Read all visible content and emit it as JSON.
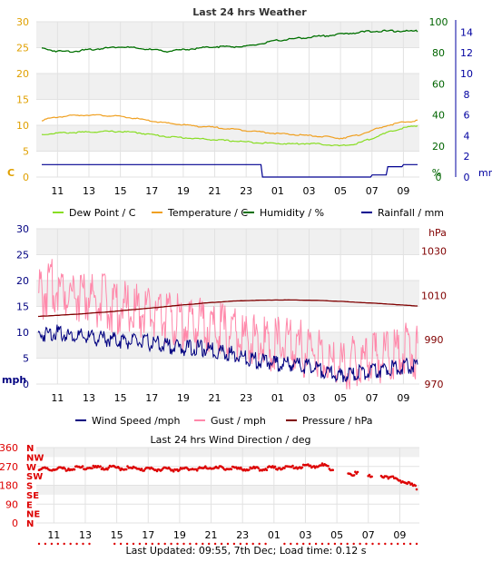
{
  "charts": {
    "weather": {
      "title": "Last 24 hrs Weather",
      "x_ticks": [
        "11",
        "13",
        "15",
        "17",
        "19",
        "21",
        "23",
        "01",
        "03",
        "05",
        "07",
        "09"
      ],
      "y_left": {
        "ticks": [
          "0",
          "5",
          "10",
          "15",
          "20",
          "25",
          "30"
        ],
        "unit": "C",
        "color": "#e0a000"
      },
      "y_humidity": {
        "ticks": [
          "0",
          "20",
          "40",
          "60",
          "80",
          "100"
        ],
        "unit": "%",
        "color": "#006400"
      },
      "y_rain": {
        "ticks": [
          "0",
          "2",
          "4",
          "6",
          "8",
          "10",
          "12",
          "14"
        ],
        "unit": "mm",
        "color": "#0000a0"
      },
      "legend": [
        {
          "label": "Dew Point / C",
          "color": "#88dd22"
        },
        {
          "label": "Temperature / C",
          "color": "#f0a020"
        },
        {
          "label": "Humidity / %",
          "color": "#007000"
        },
        {
          "label": "Rainfall / mm",
          "color": "#000090"
        }
      ]
    },
    "wind": {
      "x_ticks": [
        "11",
        "13",
        "15",
        "17",
        "19",
        "21",
        "23",
        "01",
        "03",
        "05",
        "07",
        "09"
      ],
      "y_left": {
        "ticks": [
          "0",
          "5",
          "10",
          "15",
          "20",
          "25",
          "30"
        ],
        "unit": "mph",
        "color": "#000080"
      },
      "y_right": {
        "ticks": [
          "970",
          "990",
          "1010",
          "1030"
        ],
        "unit": "hPa",
        "color": "#800000"
      },
      "legend": [
        {
          "label": "Wind Speed /mph",
          "color": "#000080"
        },
        {
          "label": "Gust / mph",
          "color": "#ff88aa"
        },
        {
          "label": "Pressure / hPa",
          "color": "#800000"
        }
      ]
    },
    "direction": {
      "title": "Last 24 hrs Wind Direction / deg",
      "x_ticks": [
        "11",
        "13",
        "15",
        "17",
        "19",
        "21",
        "23",
        "01",
        "03",
        "05",
        "07",
        "09"
      ],
      "y_ticks": [
        "0",
        "90",
        "180",
        "270",
        "360"
      ],
      "compass": [
        "N",
        "NE",
        "E",
        "SE",
        "S",
        "SW",
        "W",
        "NW",
        "N"
      ],
      "color": "#dd0000"
    }
  },
  "chart_data": [
    {
      "type": "line",
      "title": "Last 24 hrs Weather",
      "x": [
        "10",
        "11",
        "12",
        "13",
        "14",
        "15",
        "16",
        "17",
        "18",
        "19",
        "20",
        "21",
        "22",
        "23",
        "00",
        "01",
        "02",
        "03",
        "04",
        "05",
        "06",
        "07",
        "08",
        "09",
        "09.9"
      ],
      "series": [
        {
          "name": "Dew Point / C",
          "axis": "C",
          "values": [
            8.2,
            8.5,
            8.6,
            8.7,
            8.8,
            8.8,
            8.6,
            8.2,
            7.8,
            7.6,
            7.4,
            7.2,
            7.0,
            6.8,
            6.6,
            6.5,
            6.4,
            6.5,
            6.3,
            6.0,
            6.4,
            7.5,
            8.6,
            9.5,
            9.9
          ]
        },
        {
          "name": "Temperature / C",
          "axis": "C",
          "values": [
            11.0,
            11.6,
            11.9,
            12.0,
            11.9,
            11.7,
            11.3,
            10.8,
            10.4,
            10.1,
            9.8,
            9.6,
            9.3,
            9.0,
            8.7,
            8.4,
            8.2,
            8.0,
            7.8,
            7.5,
            8.0,
            9.0,
            10.0,
            10.6,
            10.9
          ]
        },
        {
          "name": "Humidity / %",
          "axis": "%",
          "values": [
            83,
            81,
            81,
            82,
            83,
            84,
            83,
            82,
            81,
            82,
            83,
            84,
            84,
            84,
            86,
            88,
            89,
            90,
            91,
            92,
            93,
            94,
            94,
            94,
            94
          ]
        },
        {
          "name": "Rainfall / mm",
          "axis": "mm",
          "values": [
            1.2,
            1.2,
            1.2,
            1.2,
            1.2,
            1.2,
            1.2,
            1.2,
            1.2,
            1.2,
            1.2,
            1.2,
            1.2,
            1.2,
            0,
            0,
            0,
            0,
            0,
            0,
            0,
            0.2,
            1.0,
            1.2,
            1.4
          ]
        }
      ],
      "ylim_C": [
        0,
        30
      ],
      "ylim_humidity": [
        0,
        100
      ],
      "ylim_rain": [
        0,
        14
      ]
    },
    {
      "type": "line",
      "x": [
        "10",
        "11",
        "12",
        "13",
        "14",
        "15",
        "16",
        "17",
        "18",
        "19",
        "20",
        "21",
        "22",
        "23",
        "00",
        "01",
        "02",
        "03",
        "04",
        "05",
        "06",
        "07",
        "08",
        "09",
        "09.9"
      ],
      "series": [
        {
          "name": "Wind Speed /mph",
          "axis": "mph",
          "values": [
            9.5,
            10,
            9.5,
            9,
            8.8,
            8.5,
            8.2,
            8,
            7.5,
            7,
            7,
            6.5,
            6,
            5,
            4.5,
            4,
            3.8,
            3.5,
            2.5,
            1.5,
            2,
            2.5,
            3,
            3.5,
            3.5
          ]
        },
        {
          "name": "Gust / mph",
          "axis": "mph",
          "values": [
            17,
            19,
            18,
            17,
            16,
            15,
            14,
            14,
            13,
            12,
            12,
            11,
            10,
            9,
            8,
            7.5,
            7.5,
            6.5,
            5,
            3.5,
            4,
            5,
            6,
            7,
            6
          ]
        },
        {
          "name": "Pressure / hPa",
          "axis": "hPa",
          "values": [
            1000.5,
            1000.9,
            1001.3,
            1001.8,
            1002.3,
            1002.9,
            1003.6,
            1004.2,
            1004.9,
            1005.6,
            1006.2,
            1006.8,
            1007.3,
            1007.6,
            1007.8,
            1007.9,
            1007.9,
            1007.8,
            1007.6,
            1007.3,
            1006.9,
            1006.5,
            1006.1,
            1005.6,
            1005.2
          ]
        }
      ],
      "ylim_mph": [
        0,
        30
      ],
      "ylim_hPa": [
        970,
        1040
      ]
    },
    {
      "type": "scatter",
      "title": "Last 24 hrs Wind Direction / deg",
      "x": [
        "10",
        "11",
        "12",
        "13",
        "14",
        "15",
        "16",
        "17",
        "18",
        "19",
        "20",
        "21",
        "22",
        "23",
        "00",
        "01",
        "02",
        "03",
        "04",
        "05",
        "06",
        "07",
        "08",
        "09",
        "09.9"
      ],
      "series": [
        {
          "name": "Wind Direction",
          "values": [
            260,
            262,
            265,
            268,
            270,
            268,
            265,
            262,
            260,
            262,
            265,
            268,
            265,
            262,
            265,
            268,
            270,
            275,
            280,
            250,
            240,
            235,
            228,
            205,
            172
          ]
        }
      ],
      "ylim": [
        0,
        360
      ]
    }
  ],
  "footer": {
    "text": "Last Updated: 09:55, 7th Dec; Load time: 0.12 s"
  }
}
